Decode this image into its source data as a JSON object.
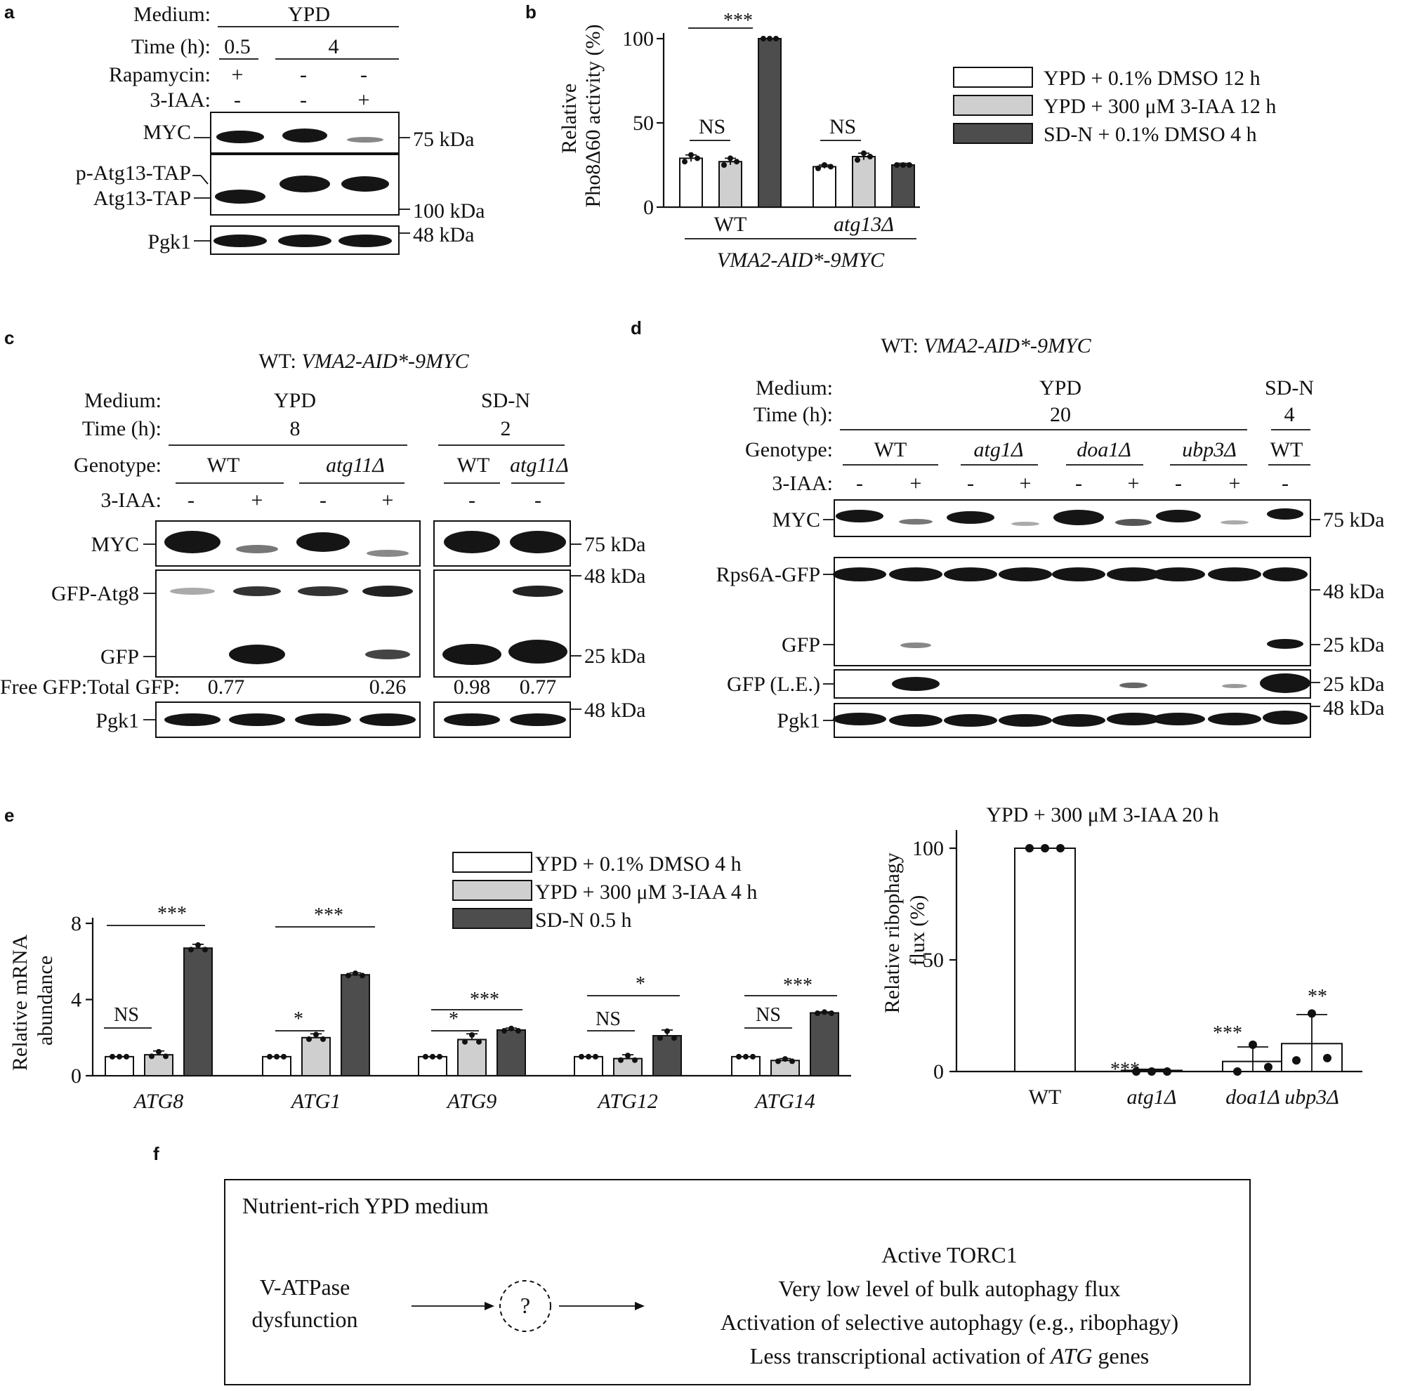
{
  "panels": {
    "a": {
      "label": "a",
      "header": {
        "medium_label": "Medium:",
        "medium_value": "YPD",
        "time_label": "Time (h):",
        "time_1": "0.5",
        "time_2": "4",
        "rapamycin_label": "Rapamycin:",
        "rapamycin": [
          "+",
          "-",
          "-"
        ],
        "iaa_label": "3-IAA:",
        "iaa": [
          "-",
          "-",
          "+"
        ]
      },
      "rows": [
        {
          "label": "MYC",
          "marker": "75 kDa"
        },
        {
          "label": "p-Atg13-TAP",
          "label2": "Atg13-TAP",
          "marker": "100 kDa"
        },
        {
          "label": "Pgk1",
          "marker": "48 kDa"
        }
      ]
    },
    "b": {
      "label": "b",
      "sig": [
        "***",
        "NS",
        "NS"
      ],
      "group_caption": "VMA2-AID*-9MYC"
    },
    "c": {
      "label": "c",
      "strain": "WT: ",
      "strain_italic": "VMA2-AID*-9MYC",
      "medium_label": "Medium:",
      "medium_1": "YPD",
      "medium_2": "SD-N",
      "time_label": "Time (h):",
      "time_1": "8",
      "time_2": "2",
      "genotype_label": "Genotype:",
      "genotypes": [
        "WT",
        "atg11Δ",
        "WT",
        "atg11Δ"
      ],
      "iaa_label": "3-IAA:",
      "iaa": [
        "-",
        "+",
        "-",
        "+",
        "-",
        "-"
      ],
      "rows": [
        "MYC",
        "GFP-Atg8",
        "GFP",
        "Pgk1"
      ],
      "markers": [
        "75 kDa",
        "48 kDa",
        "25 kDa",
        "48 kDa"
      ],
      "ratio_label": "Free GFP:Total GFP:",
      "ratios": [
        "0.77",
        "0.26",
        "0.98",
        "0.77"
      ]
    },
    "d": {
      "label": "d",
      "strain": "WT: ",
      "strain_italic": "VMA2-AID*-9MYC",
      "medium_label": "Medium:",
      "medium_1": "YPD",
      "medium_2": "SD-N",
      "time_label": "Time (h):",
      "time_1": "20",
      "time_2": "4",
      "genotype_label": "Genotype:",
      "genotypes": [
        "WT",
        "atg1Δ",
        "doa1Δ",
        "ubp3Δ",
        "WT"
      ],
      "iaa_label": "3-IAA:",
      "iaa": [
        "-",
        "+",
        "-",
        "+",
        "-",
        "+",
        "-",
        "+",
        "-"
      ],
      "rows": [
        "MYC",
        "Rps6A-GFP",
        "GFP",
        "GFP (L.E.)",
        "Pgk1"
      ],
      "markers": [
        "75 kDa",
        "48 kDa",
        "25 kDa",
        "25 kDa",
        "48 kDa"
      ]
    },
    "e": {
      "label": "e",
      "sig": [
        [
          "NS",
          "***"
        ],
        [
          "*",
          "***"
        ],
        [
          "*",
          "***"
        ],
        [
          "NS",
          "*"
        ],
        [
          "NS",
          "***"
        ]
      ]
    },
    "ribophagy": {
      "title": "YPD + 300 μM 3-IAA 20 h",
      "sig": [
        "",
        "***",
        "***",
        "**"
      ]
    },
    "f": {
      "label": "f",
      "box_title": "Nutrient-rich YPD medium",
      "left_1": "V-ATPase",
      "left_2": "dysfunction",
      "unknown": "?",
      "outcomes": [
        "Active TORC1",
        "Very low level of bulk autophagy flux",
        "Activation of selective autophagy (e.g., ribophagy)"
      ],
      "last_pre": "Less transcriptional activation of ",
      "last_italic": "ATG",
      "last_post": " genes"
    }
  },
  "chart_data": [
    {
      "type": "bar",
      "panel": "b",
      "categories": [
        "WT",
        "atg13Δ"
      ],
      "ylabel": "Relative Pho8Δ60 activity (%)",
      "ylim": [
        0,
        100
      ],
      "yticks": [
        0,
        50,
        100
      ],
      "series": [
        {
          "name": "YPD + 0.1% DMSO 12 h",
          "color": "#ffffff",
          "values": [
            29,
            24
          ],
          "errors": [
            2,
            1
          ],
          "points": [
            [
              27,
              31,
              29
            ],
            [
              23,
              25,
              24
            ]
          ]
        },
        {
          "name": "YPD + 300 μM 3-IAA 12 h",
          "color": "#cfcfcf",
          "values": [
            27,
            30
          ],
          "errors": [
            2,
            2
          ],
          "points": [
            [
              25,
              29,
              27
            ],
            [
              28,
              32,
              30
            ]
          ]
        },
        {
          "name": "SD-N + 0.1% DMSO 4 h",
          "color": "#4d4d4d",
          "values": [
            100,
            25
          ],
          "errors": [
            0,
            1
          ],
          "points": [
            [
              100,
              100,
              100
            ],
            [
              25,
              25,
              25
            ]
          ]
        }
      ],
      "legend": "right"
    },
    {
      "type": "bar",
      "panel": "e",
      "categories": [
        "ATG8",
        "ATG1",
        "ATG9",
        "ATG12",
        "ATG14"
      ],
      "ylabel": "Relative mRNA abundance",
      "ylim": [
        0,
        8
      ],
      "yticks": [
        0,
        4,
        8
      ],
      "series": [
        {
          "name": "YPD + 0.1% DMSO 4 h",
          "color": "#ffffff",
          "values": [
            1,
            1,
            1,
            1,
            1
          ],
          "errors": [
            0,
            0,
            0,
            0,
            0
          ]
        },
        {
          "name": "YPD + 300 μM 3-IAA 4 h",
          "color": "#cfcfcf",
          "values": [
            1.1,
            2.0,
            1.9,
            0.9,
            0.8
          ],
          "errors": [
            0.2,
            0.2,
            0.3,
            0.2,
            0.1
          ]
        },
        {
          "name": "SD-N 0.5 h",
          "color": "#4d4d4d",
          "values": [
            6.7,
            5.3,
            2.4,
            2.1,
            3.3
          ],
          "errors": [
            0.2,
            0.1,
            0.1,
            0.3,
            0.05
          ]
        }
      ],
      "legend": "top"
    },
    {
      "type": "bar",
      "panel": "e-right",
      "title": "YPD + 300 μM 3-IAA 20 h",
      "categories": [
        "WT",
        "atg1Δ",
        "doa1Δ",
        "ubp3Δ"
      ],
      "ylabel": "Relative ribophagy flux (%)",
      "ylim": [
        0,
        100
      ],
      "yticks": [
        0,
        50,
        100
      ],
      "values": [
        100,
        0.5,
        4.5,
        12.5
      ],
      "errors": [
        0,
        0.5,
        6.5,
        13
      ],
      "points": [
        [
          100,
          100,
          100
        ],
        [
          0,
          0,
          0
        ],
        [
          0,
          12,
          2
        ],
        [
          5,
          26,
          6
        ]
      ]
    }
  ]
}
